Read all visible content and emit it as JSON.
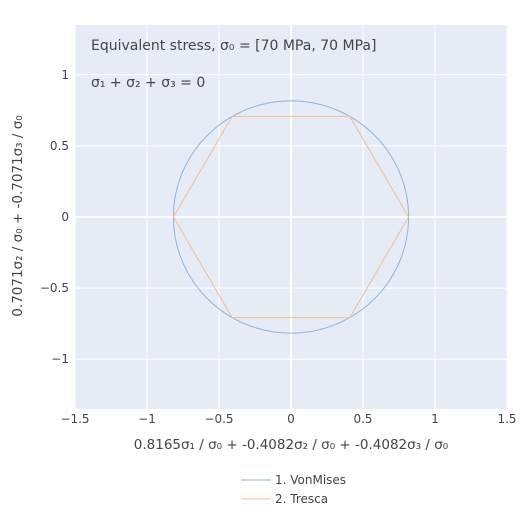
{
  "chart_data": {
    "type": "line",
    "annotations": [
      "Equivalent stress, σ₀ = [70 MPa, 70 MPa]",
      "σ₁ + σ₂ + σ₃ = 0"
    ],
    "xlabel": "0.8165σ₁ / σ₀ + -0.4082σ₂ / σ₀ + -0.4082σ₃ / σ₀",
    "ylabel": "0.7071σ₂ / σ₀ + -0.7071σ₃ / σ₀",
    "xlim": [
      -1.5,
      1.5
    ],
    "ylim": [
      -1.35,
      1.35
    ],
    "x_ticks": [
      -1.5,
      -1,
      -0.5,
      0,
      0.5,
      1,
      1.5
    ],
    "x_tick_labels": [
      "−1.5",
      "−1",
      "−0.5",
      "0",
      "0.5",
      "1",
      "1.5"
    ],
    "y_ticks": [
      -1,
      -0.5,
      0,
      0.5,
      1
    ],
    "y_tick_labels": [
      "−1",
      "−0.5",
      "0",
      "0.5",
      "1"
    ],
    "grid": true,
    "legend_position": "bottom",
    "colors": {
      "plot_background": "#e5ecf6",
      "grid": "#ffffff"
    },
    "series": [
      {
        "name": "1. VonMises",
        "color": "#91b4d6",
        "shape": "circle",
        "center": [
          0,
          0
        ],
        "radius": 0.8165
      },
      {
        "name": "2. Tresca",
        "color": "#f5be8c",
        "shape": "polygon",
        "x": [
          0.8165,
          0.4082,
          -0.4082,
          -0.8165,
          -0.4082,
          0.4082,
          0.8165
        ],
        "y": [
          0,
          0.7071,
          0.7071,
          0,
          -0.7071,
          -0.7071,
          0
        ]
      }
    ]
  }
}
